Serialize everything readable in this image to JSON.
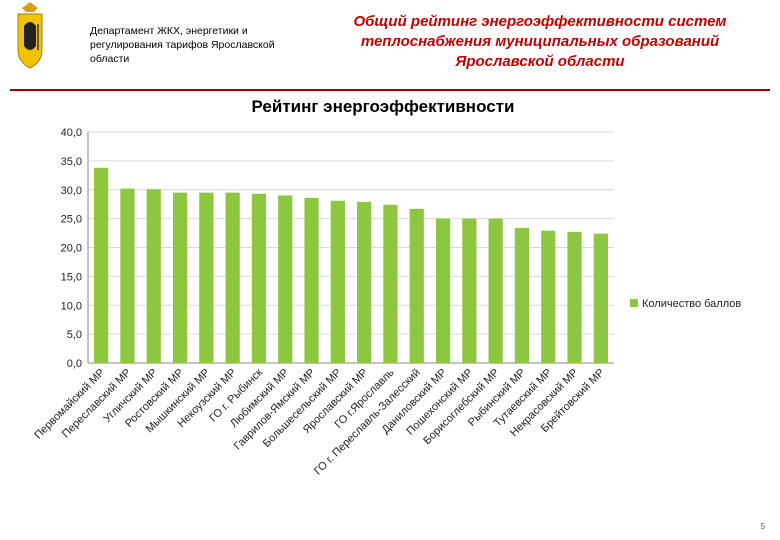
{
  "header": {
    "department": "Департамент ЖКХ, энергетики и регулирования тарифов Ярославской области",
    "title": "Общий рейтинг энергоэффективности систем теплоснабжения муниципальных образований Ярославской области"
  },
  "page_number": "5",
  "chart_data": {
    "type": "bar",
    "title": "Рейтинг энергоэффективности",
    "categories": [
      "Первомайский МР",
      "Переславский МР",
      "Угличский МР",
      "Ростовский МР",
      "Мышкинский МР",
      "Некоузский МР",
      "ГО г. Рыбинск",
      "Любимский МР",
      "Гаврилов-Ямский МР",
      "Большесельский МР",
      "Ярославский МР",
      "ГО г.Ярославль",
      "ГО г. Переславль-Залесский",
      "Даниловский МР",
      "Пошехонский МР",
      "Борисоглебский МР",
      "Рыбинский МР",
      "Тутаевский МР",
      "Некрасовский МР",
      "Брейтовский МР"
    ],
    "series": [
      {
        "name": "Количество баллов",
        "color": "#8dc63f",
        "values": [
          33.8,
          30.2,
          30.1,
          29.5,
          29.5,
          29.5,
          29.3,
          29.0,
          28.6,
          28.1,
          27.9,
          27.4,
          26.7,
          25.0,
          25.0,
          25.0,
          23.4,
          22.9,
          22.7,
          22.4
        ]
      }
    ],
    "ylim": [
      0,
      40
    ],
    "yticks": [
      {
        "value": 0,
        "label": "0,0"
      },
      {
        "value": 5,
        "label": "5,0"
      },
      {
        "value": 10,
        "label": "10,0"
      },
      {
        "value": 15,
        "label": "15,0"
      },
      {
        "value": 20,
        "label": "20,0"
      },
      {
        "value": 25,
        "label": "25,0"
      },
      {
        "value": 30,
        "label": "30,0"
      },
      {
        "value": 35,
        "label": "35,0"
      },
      {
        "value": 40,
        "label": "40,0"
      }
    ],
    "grid": true,
    "legend": "right"
  }
}
